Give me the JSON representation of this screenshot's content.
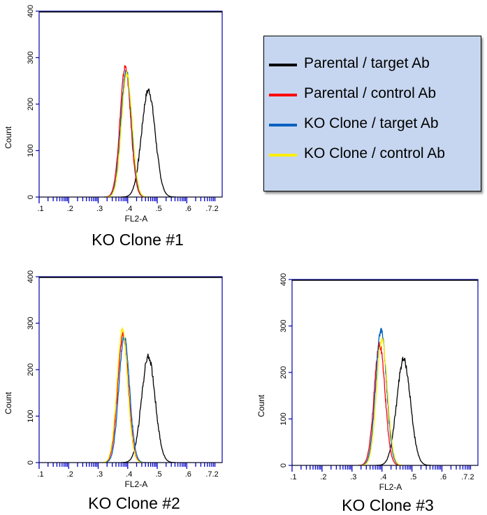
{
  "legend": {
    "entries": [
      {
        "label": "Parental / target Ab",
        "color": "#000000"
      },
      {
        "label": "Parental / control Ab",
        "color": "#ff0000"
      },
      {
        "label": "KO Clone / target Ab",
        "color": "#0060c0"
      },
      {
        "label": "KO Clone / control Ab",
        "color": "#ffee00"
      }
    ]
  },
  "chart_data": [
    {
      "type": "line",
      "title": "KO Clone #1",
      "xlabel": "FL2-A",
      "ylabel": "Count",
      "xlim": [
        1,
        7.2
      ],
      "ylim": [
        0,
        400
      ],
      "x_ticks": [
        ".1",
        ".2",
        ".3",
        ".4",
        ".5",
        ".6",
        ".7.2"
      ],
      "y_ticks": [
        "0",
        "100",
        "200",
        "300",
        "400"
      ],
      "series": [
        {
          "color": "#000000",
          "center": 4.7,
          "peak": 230,
          "width": 0.23
        },
        {
          "color": "#ff0000",
          "center": 3.92,
          "peak": 280,
          "width": 0.18
        },
        {
          "color": "#0060c0",
          "center": 3.95,
          "peak": 270,
          "width": 0.18
        },
        {
          "color": "#ffee00",
          "center": 3.97,
          "peak": 265,
          "width": 0.18
        }
      ]
    },
    {
      "type": "line",
      "title": "KO Clone #2",
      "xlabel": "FL2-A",
      "ylabel": "Count",
      "xlim": [
        1,
        7.2
      ],
      "ylim": [
        0,
        400
      ],
      "x_ticks": [
        ".1",
        ".2",
        ".3",
        ".4",
        ".5",
        ".6",
        ".7.2"
      ],
      "y_ticks": [
        "0",
        "100",
        "200",
        "300",
        "400"
      ],
      "series": [
        {
          "color": "#000000",
          "center": 4.7,
          "peak": 228,
          "width": 0.23
        },
        {
          "color": "#ff0000",
          "center": 3.84,
          "peak": 275,
          "width": 0.18
        },
        {
          "color": "#0060c0",
          "center": 3.88,
          "peak": 270,
          "width": 0.18
        },
        {
          "color": "#ffee00",
          "center": 3.82,
          "peak": 285,
          "width": 0.18
        }
      ]
    },
    {
      "type": "line",
      "title": "KO Clone #3",
      "xlabel": "FL2-A",
      "ylabel": "Count",
      "xlim": [
        1,
        7.2
      ],
      "ylim": [
        0,
        400
      ],
      "x_ticks": [
        ".1",
        ".2",
        ".3",
        ".4",
        ".5",
        ".6",
        ".7.2"
      ],
      "y_ticks": [
        "0",
        "100",
        "200",
        "300",
        "400"
      ],
      "series": [
        {
          "color": "#000000",
          "center": 4.72,
          "peak": 228,
          "width": 0.23
        },
        {
          "color": "#ff0000",
          "center": 3.92,
          "peak": 260,
          "width": 0.18
        },
        {
          "color": "#0060c0",
          "center": 3.97,
          "peak": 290,
          "width": 0.18
        },
        {
          "color": "#ffee00",
          "center": 4.0,
          "peak": 270,
          "width": 0.18
        }
      ]
    }
  ]
}
